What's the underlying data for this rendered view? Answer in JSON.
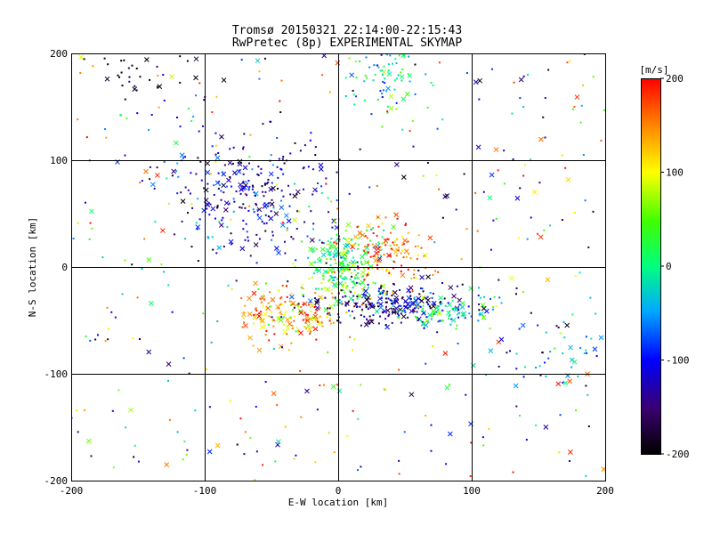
{
  "chart_data": {
    "type": "scatter",
    "title": "Tromsø 20150321 22:14:00-22:15:43",
    "subtitle": "RwPretec (8p) EXPERIMENTAL SKYMAP",
    "xlabel": "E-W location [km]",
    "ylabel": "N-S location [km]",
    "xlim": [
      -200,
      200
    ],
    "ylim": [
      -200,
      200
    ],
    "xticks": [
      "-200",
      "-100",
      "0",
      "100",
      "200"
    ],
    "yticks": [
      "-200",
      "-100",
      "0",
      "100",
      "200"
    ],
    "grid": true,
    "colorbar": {
      "label": "[m/s]",
      "range": [
        -200,
        200
      ],
      "ticks": [
        "200",
        "100",
        "0",
        "-100",
        "-200"
      ]
    },
    "markers": [
      "dot",
      "x"
    ],
    "clusters": [
      {
        "name": "north-upper-cloud",
        "x_center": 35,
        "y_center": 178,
        "x_spread": 12,
        "y_spread": 18,
        "velocity": -20,
        "count": 70
      },
      {
        "name": "northwest-cloud",
        "x_center": -65,
        "y_center": 70,
        "x_spread": 30,
        "y_spread": 28,
        "velocity": -130,
        "count": 260
      },
      {
        "name": "center-green-core",
        "x_center": 5,
        "y_center": 0,
        "x_spread": 14,
        "y_spread": 18,
        "velocity": 20,
        "count": 230
      },
      {
        "name": "east-red-lobe",
        "x_center": 35,
        "y_center": 15,
        "x_spread": 18,
        "y_spread": 16,
        "velocity": 165,
        "count": 130
      },
      {
        "name": "southwest-red-band",
        "x_center": -35,
        "y_center": -45,
        "x_spread": 22,
        "y_spread": 12,
        "velocity": 140,
        "count": 170
      },
      {
        "name": "southeast-blue-band",
        "x_center": 40,
        "y_center": -35,
        "x_spread": 28,
        "y_spread": 9,
        "velocity": -140,
        "count": 220
      },
      {
        "name": "east-green-tail",
        "x_center": 80,
        "y_center": -40,
        "x_spread": 18,
        "y_spread": 8,
        "velocity": -20,
        "count": 90
      },
      {
        "name": "far-east-tail",
        "x_center": 160,
        "y_center": -85,
        "x_spread": 25,
        "y_spread": 18,
        "velocity": -70,
        "count": 45
      },
      {
        "name": "northwest-black-corner",
        "x_center": -150,
        "y_center": 180,
        "x_spread": 25,
        "y_spread": 15,
        "velocity": -195,
        "count": 30
      },
      {
        "name": "background-scatter",
        "x_center": 0,
        "y_center": 0,
        "x_spread": 200,
        "y_spread": 200,
        "velocity": 0,
        "count": 420,
        "uniform": true
      }
    ]
  }
}
